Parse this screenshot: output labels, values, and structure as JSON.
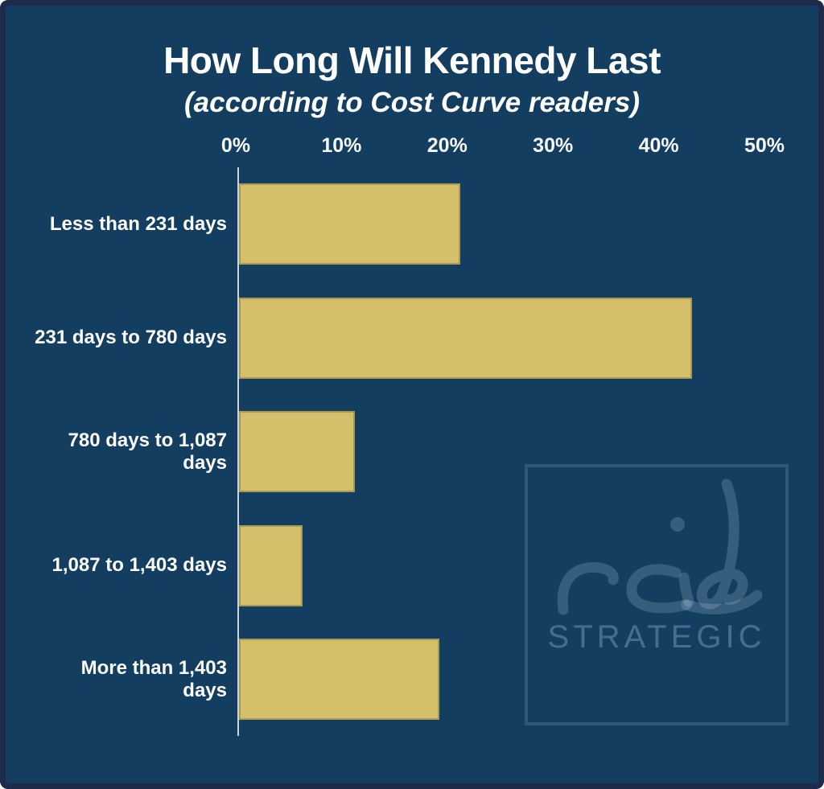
{
  "title": "How Long Will Kennedy Last",
  "subtitle": "(according to Cost Curve readers)",
  "chart_data": {
    "type": "bar",
    "orientation": "horizontal",
    "title": "How Long Will Kennedy Last",
    "subtitle": "(according to Cost Curve readers)",
    "categories": [
      "Less than 231 days",
      "231 days to 780 days",
      "780 days to 1,087 days",
      "1,087 to 1,403 days",
      "More than 1,403 days"
    ],
    "values": [
      21,
      43,
      11,
      6,
      19
    ],
    "unit": "%",
    "xlim": [
      0,
      50
    ],
    "x_ticks": [
      "0%",
      "10%",
      "20%",
      "30%",
      "40%",
      "50%"
    ],
    "grid": false,
    "legend": false,
    "bar_color": "#d4bf6a",
    "background_color": "#133e60",
    "axis_line_color": "#cdd4db",
    "text_color": "#ffffff"
  },
  "watermark": {
    "script_text": "reid",
    "label": "STRATEGIC"
  }
}
